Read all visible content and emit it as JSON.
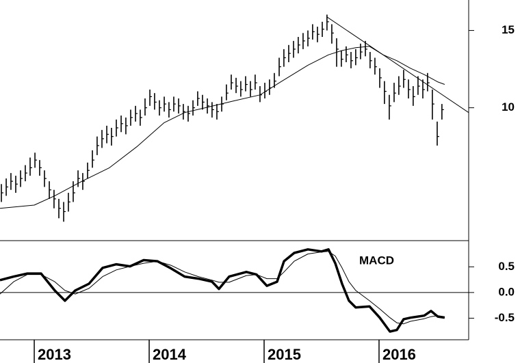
{
  "chart_data": [
    {
      "type": "ohlc",
      "log_scale": true,
      "color": "#000000",
      "xlim": [
        2012.702,
        2016.78
      ],
      "ylim": [
        4.98,
        17.6
      ],
      "yticks": [
        10,
        15
      ],
      "x": [
        2012.714,
        2012.756,
        2012.797,
        2012.839,
        2012.881,
        2012.922,
        2012.964,
        2013.006,
        2013.047,
        2013.089,
        2013.131,
        2013.172,
        2013.214,
        2013.256,
        2013.297,
        2013.339,
        2013.381,
        2013.422,
        2013.464,
        2013.506,
        2013.547,
        2013.589,
        2013.631,
        2013.672,
        2013.714,
        2013.756,
        2013.797,
        2013.839,
        2013.881,
        2013.922,
        2013.964,
        2014.006,
        2014.047,
        2014.089,
        2014.131,
        2014.172,
        2014.214,
        2014.256,
        2014.297,
        2014.339,
        2014.381,
        2014.422,
        2014.464,
        2014.506,
        2014.547,
        2014.589,
        2014.631,
        2014.672,
        2014.714,
        2014.756,
        2014.797,
        2014.839,
        2014.881,
        2014.922,
        2014.964,
        2015.006,
        2015.047,
        2015.089,
        2015.131,
        2015.172,
        2015.214,
        2015.256,
        2015.297,
        2015.339,
        2015.381,
        2015.422,
        2015.464,
        2015.506,
        2015.547,
        2015.589,
        2015.631,
        2015.672,
        2015.714,
        2015.756,
        2015.797,
        2015.839,
        2015.881,
        2015.922,
        2015.964,
        2016.006,
        2016.047,
        2016.089,
        2016.131,
        2016.172,
        2016.214,
        2016.256,
        2016.297,
        2016.339,
        2016.381,
        2016.422,
        2016.464,
        2016.506,
        2016.547
      ],
      "high": [
        6.7,
        6.9,
        7.1,
        7.0,
        7.2,
        7.4,
        7.7,
        7.9,
        7.6,
        7.2,
        6.8,
        6.5,
        6.2,
        6.1,
        6.4,
        6.8,
        7.2,
        7.1,
        7.5,
        8.0,
        8.6,
        8.9,
        9.1,
        9.0,
        9.4,
        9.6,
        9.5,
        9.9,
        10.1,
        9.9,
        10.5,
        11.0,
        10.8,
        10.4,
        10.6,
        10.3,
        10.6,
        10.5,
        10.2,
        10.1,
        10.4,
        10.9,
        10.7,
        10.5,
        10.3,
        10.2,
        10.6,
        11.3,
        11.9,
        11.7,
        11.5,
        11.8,
        11.5,
        11.9,
        11.2,
        11.4,
        11.6,
        12.0,
        13.0,
        13.6,
        13.9,
        14.2,
        14.5,
        14.8,
        15.0,
        15.5,
        15.3,
        15.7,
        16.3,
        15.5,
        14.4,
        13.5,
        13.8,
        13.4,
        13.6,
        14.0,
        14.2,
        13.4,
        13.0,
        12.3,
        11.5,
        10.7,
        11.4,
        11.8,
        12.2,
        11.6,
        11.2,
        11.8,
        11.6,
        12.0,
        11.0,
        9.3,
        10.2
      ],
      "low": [
        6.1,
        6.3,
        6.5,
        6.4,
        6.6,
        6.8,
        7.0,
        7.3,
        7.0,
        6.6,
        6.2,
        5.9,
        5.6,
        5.5,
        5.8,
        6.1,
        6.6,
        6.5,
        6.9,
        7.3,
        7.8,
        8.1,
        8.3,
        8.2,
        8.6,
        8.8,
        8.7,
        9.1,
        9.3,
        9.1,
        9.6,
        10.1,
        9.9,
        9.6,
        9.8,
        9.5,
        9.8,
        9.7,
        9.4,
        9.3,
        9.6,
        10.1,
        9.9,
        9.7,
        9.5,
        9.4,
        9.8,
        10.4,
        11.0,
        10.8,
        10.6,
        10.9,
        10.6,
        11.0,
        10.3,
        10.5,
        10.7,
        11.1,
        11.8,
        12.4,
        12.7,
        13.0,
        13.3,
        13.6,
        13.8,
        14.3,
        14.1,
        14.5,
        15.0,
        14.0,
        12.4,
        12.4,
        12.7,
        12.3,
        12.5,
        12.9,
        13.1,
        12.3,
        11.9,
        11.1,
        10.2,
        9.4,
        10.3,
        10.7,
        11.1,
        10.5,
        10.1,
        10.7,
        10.5,
        10.9,
        9.4,
        8.2,
        9.4
      ],
      "close": [
        6.4,
        6.6,
        6.8,
        6.7,
        6.9,
        7.1,
        7.3,
        7.6,
        7.3,
        6.9,
        6.5,
        6.2,
        5.9,
        5.8,
        6.1,
        6.4,
        6.9,
        6.8,
        7.2,
        7.6,
        8.2,
        8.5,
        8.7,
        8.6,
        9.0,
        9.2,
        9.1,
        9.5,
        9.7,
        9.5,
        10.0,
        10.6,
        10.3,
        10.0,
        10.2,
        9.9,
        10.2,
        10.1,
        9.8,
        9.7,
        10.0,
        10.5,
        10.3,
        10.1,
        9.9,
        9.8,
        10.2,
        10.8,
        11.4,
        11.2,
        11.0,
        11.3,
        11.0,
        11.4,
        10.7,
        10.9,
        11.1,
        11.5,
        12.4,
        13.0,
        13.3,
        13.6,
        13.9,
        14.2,
        14.4,
        14.9,
        14.7,
        15.1,
        15.7,
        14.8,
        13.6,
        12.9,
        13.2,
        12.8,
        13.0,
        13.4,
        13.6,
        12.8,
        12.4,
        11.7,
        10.9,
        10.1,
        10.8,
        11.2,
        11.6,
        11.0,
        10.6,
        11.2,
        11.0,
        11.4,
        10.2,
        8.6,
        9.9
      ],
      "moving_average": {
        "x": [
          2012.702,
          2013.0,
          2013.178,
          2013.416,
          2013.654,
          2013.892,
          2014.131,
          2014.309,
          2014.488,
          2014.726,
          2014.964,
          2015.143,
          2015.381,
          2015.56,
          2015.678,
          2015.797,
          2015.917,
          2016.036,
          2016.155,
          2016.274,
          2016.393,
          2016.512,
          2016.571
        ],
        "values": [
          5.9,
          6.0,
          6.3,
          6.8,
          7.3,
          8.15,
          9.25,
          9.75,
          10.0,
          10.35,
          10.7,
          11.45,
          12.5,
          13.2,
          13.5,
          13.7,
          13.8,
          13.2,
          12.8,
          12.3,
          11.9,
          11.45,
          11.3
        ]
      },
      "trendline": {
        "x": [
          2015.547,
          2016.78
        ],
        "values": [
          16.1,
          9.75
        ]
      }
    },
    {
      "type": "line",
      "annotation": "MACD",
      "color": "#000000",
      "xlim": [
        2012.702,
        2016.78
      ],
      "ylim": [
        -0.92,
        1.01
      ],
      "yticks": [
        0.5,
        {
          "value": 0,
          "label": "0.0"
        },
        -0.5
      ],
      "hline": 0,
      "xticks": [
        2013,
        2014,
        2015,
        2016
      ],
      "x": [
        2012.702,
        2012.821,
        2012.94,
        2013.059,
        2013.178,
        2013.267,
        2013.357,
        2013.476,
        2013.595,
        2013.714,
        2013.833,
        2013.952,
        2014.071,
        2014.19,
        2014.309,
        2014.428,
        2014.547,
        2014.607,
        2014.696,
        2014.845,
        2014.934,
        2015.024,
        2015.113,
        2015.173,
        2015.262,
        2015.381,
        2015.5,
        2015.56,
        2015.619,
        2015.678,
        2015.738,
        2015.797,
        2015.917,
        2016.006,
        2016.095,
        2016.155,
        2016.214,
        2016.274,
        2016.393,
        2016.452,
        2016.512,
        2016.571
      ],
      "series": [
        {
          "width": 3.5,
          "values": [
            0.24,
            0.31,
            0.37,
            0.37,
            0.04,
            -0.16,
            0.04,
            0.17,
            0.48,
            0.55,
            0.51,
            0.63,
            0.61,
            0.47,
            0.31,
            0.27,
            0.21,
            0.07,
            0.31,
            0.4,
            0.35,
            0.13,
            0.21,
            0.61,
            0.77,
            0.84,
            0.8,
            0.84,
            0.57,
            0.17,
            -0.16,
            -0.29,
            -0.27,
            -0.49,
            -0.76,
            -0.73,
            -0.52,
            -0.49,
            -0.45,
            -0.36,
            -0.47,
            -0.49
          ]
        },
        {
          "width": 1,
          "values": [
            -0.03,
            0.21,
            0.35,
            0.35,
            0.21,
            0.04,
            -0.03,
            0.08,
            0.31,
            0.44,
            0.51,
            0.57,
            0.61,
            0.53,
            0.4,
            0.31,
            0.24,
            0.2,
            0.2,
            0.33,
            0.35,
            0.27,
            0.27,
            0.4,
            0.61,
            0.75,
            0.79,
            0.8,
            0.71,
            0.48,
            0.21,
            0.04,
            -0.16,
            -0.32,
            -0.49,
            -0.59,
            -0.61,
            -0.56,
            -0.51,
            -0.47,
            -0.45,
            -0.47
          ]
        }
      ]
    }
  ]
}
